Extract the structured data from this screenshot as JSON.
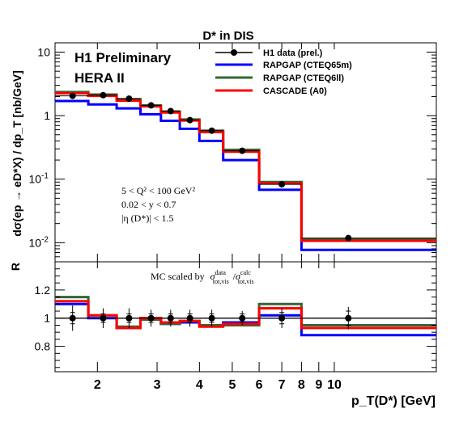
{
  "chart_data": [
    {
      "type": "line",
      "panel": "cross-section",
      "title": "D* in DIS",
      "ylabel": "dσ(ep → eD*X) / dp_T [nb/GeV]",
      "yscale": "log",
      "ylim": [
        0.005,
        14
      ],
      "yticks": [
        {
          "value": 0.01,
          "base": "10",
          "exp": "-2"
        },
        {
          "value": 0.1,
          "base": "10",
          "exp": "-1"
        },
        {
          "value": 1,
          "base": "1",
          "exp": ""
        },
        {
          "value": 10,
          "base": "10",
          "exp": ""
        }
      ],
      "labels": {
        "preliminary": "H1 Preliminary",
        "dataset": "HERA II",
        "cut1": "5 < Q² < 100 GeV²",
        "cut2": "0.02 < y < 0.7",
        "cut3": "|η (D*)| < 1.5"
      },
      "legend_position": "top-right",
      "bin_edges": [
        1.5,
        1.88,
        2.28,
        2.68,
        3.08,
        3.5,
        4.0,
        4.7,
        6.0,
        8.0,
        20.0
      ],
      "series": [
        {
          "name": "H1 data (prel.)",
          "kind": "points",
          "color": "#000000",
          "x": [
            1.69,
            2.08,
            2.48,
            2.88,
            3.29,
            3.75,
            4.35,
            5.35,
            7.0,
            11.0
          ],
          "y": [
            2.05,
            2.1,
            1.85,
            1.45,
            1.18,
            0.85,
            0.58,
            0.28,
            0.083,
            0.0118
          ]
        },
        {
          "name": "RAPGAP (CTEQ65m)",
          "kind": "step",
          "color": "#0000ff",
          "y": [
            1.7,
            1.5,
            1.3,
            1.05,
            0.83,
            0.62,
            0.4,
            0.2,
            0.068,
            0.0077
          ]
        },
        {
          "name": "RAPGAP (CTEQ6ll)",
          "kind": "step",
          "color": "#336633",
          "y": [
            2.35,
            2.15,
            1.82,
            1.45,
            1.16,
            0.87,
            0.58,
            0.29,
            0.09,
            0.0112
          ]
        },
        {
          "name": "CASCADE (A0)",
          "kind": "step",
          "color": "#ff0000",
          "y": [
            2.25,
            2.05,
            1.72,
            1.4,
            1.12,
            0.84,
            0.55,
            0.27,
            0.086,
            0.0107
          ]
        }
      ]
    },
    {
      "type": "line",
      "panel": "ratio",
      "ylabel": "R",
      "xlabel": "p_T(D*) [GeV]",
      "xscale": "log",
      "xlim": [
        1.5,
        20
      ],
      "xticks": [
        "2",
        "3",
        "4",
        "5",
        "6",
        "7",
        "8",
        "9",
        "10"
      ],
      "xtick_values": [
        2,
        3,
        4,
        5,
        6,
        7,
        8,
        9,
        10
      ],
      "ylim": [
        0.62,
        1.4
      ],
      "yticks": [
        "0.8",
        "1",
        "1.2"
      ],
      "ytick_values": [
        0.8,
        1.0,
        1.2
      ],
      "annotation": {
        "prefix": "MC scaled by",
        "num_sup": "data",
        "num_sub": "tot,vis",
        "den_sup": "calc",
        "den_sub": "tot,vis"
      },
      "bin_edges": [
        1.5,
        1.88,
        2.28,
        2.68,
        3.08,
        3.5,
        4.0,
        4.7,
        6.0,
        8.0,
        20.0
      ],
      "series": [
        {
          "name": "H1 data (prel.)",
          "kind": "points",
          "color": "#000000",
          "x": [
            1.69,
            2.08,
            2.48,
            2.88,
            3.29,
            3.75,
            4.35,
            5.35,
            7.0,
            11.0
          ],
          "y": [
            1.0,
            1.0,
            1.0,
            1.0,
            1.0,
            1.0,
            1.0,
            1.0,
            1.0,
            1.0
          ],
          "err_outer": [
            0.09,
            0.07,
            0.07,
            0.06,
            0.06,
            0.06,
            0.06,
            0.05,
            0.07,
            0.08
          ],
          "err_inner": [
            0.04,
            0.03,
            0.03,
            0.03,
            0.03,
            0.03,
            0.03,
            0.03,
            0.04,
            0.05
          ]
        },
        {
          "name": "RAPGAP (CTEQ65m)",
          "kind": "step",
          "color": "#0000ff",
          "y": [
            1.1,
            1.0,
            0.93,
            1.0,
            0.96,
            0.97,
            0.95,
            0.97,
            1.02,
            0.88
          ]
        },
        {
          "name": "RAPGAP (CTEQ6ll)",
          "kind": "step",
          "color": "#336633",
          "y": [
            1.15,
            1.02,
            0.94,
            0.99,
            0.96,
            0.98,
            0.95,
            0.95,
            1.1,
            0.95
          ]
        },
        {
          "name": "CASCADE (A0)",
          "kind": "step",
          "color": "#ff0000",
          "y": [
            1.12,
            1.02,
            0.93,
            1.0,
            0.97,
            0.98,
            0.94,
            0.96,
            1.07,
            0.93
          ]
        }
      ]
    }
  ]
}
